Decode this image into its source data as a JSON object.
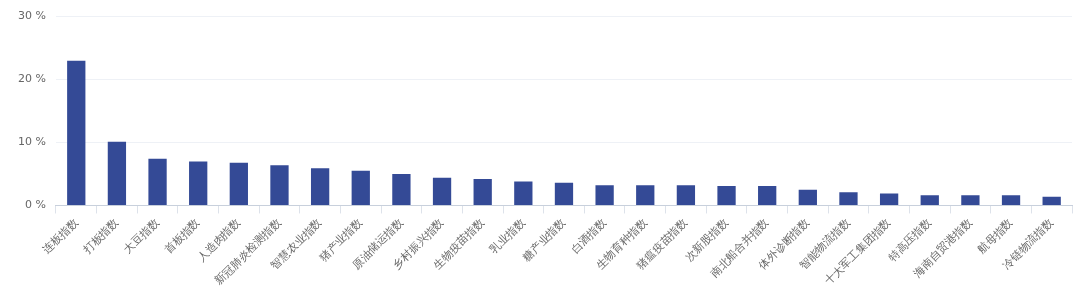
{
  "chart_data": {
    "type": "bar",
    "categories": [
      "连板指数",
      "打板指数",
      "大豆指数",
      "首板指数",
      "人造肉指数",
      "新冠肺炎检测指数",
      "智慧农业指数",
      "猪产业指数",
      "原油储运指数",
      "乡村振兴指数",
      "生物疫苗指数",
      "乳业指数",
      "糖产业指数",
      "白酒指数",
      "生物育种指数",
      "猪瘟疫苗指数",
      "次新股指数",
      "南北船合并指数",
      "体外诊断指数",
      "智能物流指数",
      "十大军工集团指数",
      "特高压指数",
      "海南自贸港指数",
      "航母指数",
      "冷链物流指数"
    ],
    "values": [
      23,
      10.1,
      7.4,
      7.0,
      6.8,
      6.4,
      5.9,
      5.5,
      5.0,
      4.4,
      4.2,
      3.8,
      3.6,
      3.2,
      3.2,
      3.2,
      3.1,
      3.1,
      2.5,
      2.1,
      1.9,
      1.6,
      1.6,
      1.6,
      1.4
    ],
    "color": "#344a96",
    "ylim": [
      0,
      30
    ],
    "yticks": [
      {
        "value": 0,
        "label": "0 %"
      },
      {
        "value": 10,
        "label": "10 %"
      },
      {
        "value": 20,
        "label": "20 %"
      },
      {
        "value": 30,
        "label": "30 %"
      }
    ],
    "grid": "y",
    "legend": false
  }
}
